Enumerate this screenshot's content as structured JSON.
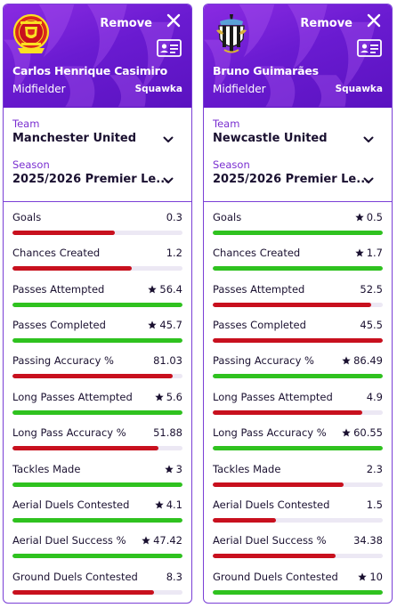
{
  "colors": {
    "better": "#2fc21f",
    "worse": "#c8101e",
    "accent": "#7a2fd0",
    "header_bg": "#6a1bd1"
  },
  "labels": {
    "remove": "Remove",
    "team": "Team",
    "season": "Season",
    "stat_names": [
      "Goals",
      "Chances Created",
      "Passes Attempted",
      "Passes Completed",
      "Passing Accuracy %",
      "Long Passes Attempted",
      "Long Pass Accuracy %",
      "Tackles Made",
      "Aerial Duels Contested",
      "Aerial Duel Success %",
      "Ground Duels Contested"
    ]
  },
  "players": [
    {
      "name": "Carlos Henrique Casimiro",
      "position": "Midfielder",
      "source": "Squawka",
      "team": "Manchester United",
      "season": "2025/2026 Premier Le...",
      "badge": "man-utd-crest",
      "stats": [
        {
          "value": "0.3",
          "star": false,
          "fill": 0.6,
          "status": "worse"
        },
        {
          "value": "1.2",
          "star": false,
          "fill": 0.7,
          "status": "worse"
        },
        {
          "value": "56.4",
          "star": true,
          "fill": 1.0,
          "status": "better"
        },
        {
          "value": "45.7",
          "star": true,
          "fill": 1.0,
          "status": "better"
        },
        {
          "value": "81.03",
          "star": false,
          "fill": 0.94,
          "status": "worse"
        },
        {
          "value": "5.6",
          "star": true,
          "fill": 1.0,
          "status": "better"
        },
        {
          "value": "51.88",
          "star": false,
          "fill": 0.86,
          "status": "worse"
        },
        {
          "value": "3",
          "star": true,
          "fill": 1.0,
          "status": "better"
        },
        {
          "value": "4.1",
          "star": true,
          "fill": 1.0,
          "status": "better"
        },
        {
          "value": "47.42",
          "star": true,
          "fill": 1.0,
          "status": "better"
        },
        {
          "value": "8.3",
          "star": false,
          "fill": 0.83,
          "status": "worse"
        }
      ]
    },
    {
      "name": "Bruno Guimarães",
      "position": "Midfielder",
      "source": "Squawka",
      "team": "Newcastle United",
      "season": "2025/2026 Premier Le...",
      "badge": "newcastle-crest",
      "stats": [
        {
          "value": "0.5",
          "star": true,
          "fill": 1.0,
          "status": "better"
        },
        {
          "value": "1.7",
          "star": true,
          "fill": 1.0,
          "status": "better"
        },
        {
          "value": "52.5",
          "star": false,
          "fill": 0.93,
          "status": "worse"
        },
        {
          "value": "45.5",
          "star": false,
          "fill": 1.0,
          "status": "worse"
        },
        {
          "value": "86.49",
          "star": true,
          "fill": 1.0,
          "status": "better"
        },
        {
          "value": "4.9",
          "star": false,
          "fill": 0.88,
          "status": "worse"
        },
        {
          "value": "60.55",
          "star": true,
          "fill": 1.0,
          "status": "better"
        },
        {
          "value": "2.3",
          "star": false,
          "fill": 0.77,
          "status": "worse"
        },
        {
          "value": "1.5",
          "star": false,
          "fill": 0.37,
          "status": "worse"
        },
        {
          "value": "34.38",
          "star": false,
          "fill": 0.72,
          "status": "worse"
        },
        {
          "value": "10",
          "star": true,
          "fill": 1.0,
          "status": "better"
        }
      ]
    }
  ]
}
